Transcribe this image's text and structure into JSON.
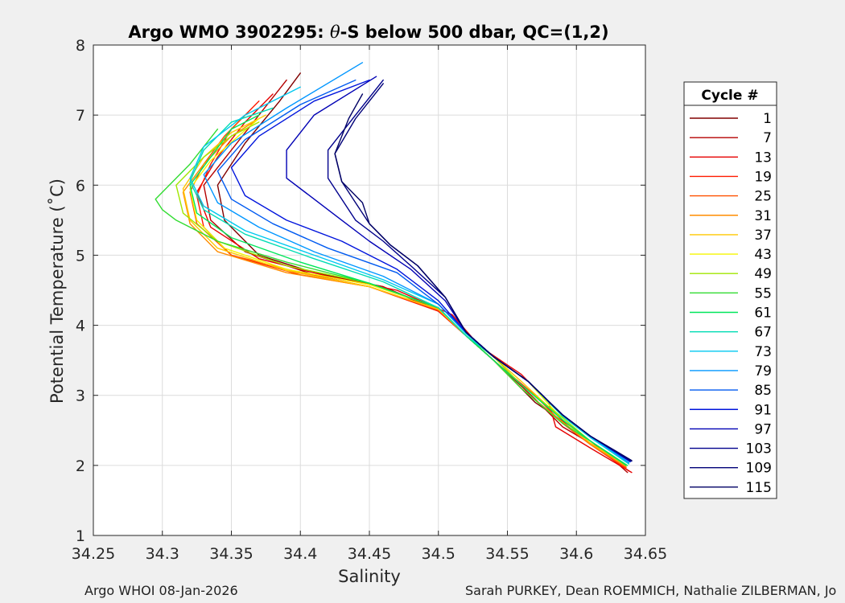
{
  "figure": {
    "footer_left": "Argo WHOI 08-Jan-2026",
    "footer_right": "Sarah PURKEY, Dean ROEMMICH, Nathalie ZILBERMAN, Jo"
  },
  "chart_data": {
    "type": "line",
    "title_prefix": "Argo WMO 3902295: ",
    "title_symbol": "θ",
    "title_suffix": "-S below 500 dbar,  QC=(1,2)",
    "xlabel": "Salinity",
    "ylabel": "Potential Temperature (˚C)",
    "xlim": [
      34.25,
      34.65
    ],
    "ylim": [
      1,
      8
    ],
    "xticks": [
      "34.25",
      "34.3",
      "34.35",
      "34.4",
      "34.45",
      "34.5",
      "34.55",
      "34.6",
      "34.65"
    ],
    "yticks": [
      "1",
      "2",
      "3",
      "4",
      "5",
      "6",
      "7",
      "8"
    ],
    "grid": true,
    "legend_title": "Cycle #",
    "legend_position": "right",
    "series": [
      {
        "name": "1",
        "color": "#800000",
        "x": [
          34.638,
          34.62,
          34.6,
          34.57,
          34.54,
          34.52,
          34.5,
          34.46,
          34.41,
          34.37,
          34.345,
          34.34,
          34.36,
          34.385,
          34.4
        ],
        "y": [
          1.92,
          2.2,
          2.5,
          2.9,
          3.5,
          3.85,
          4.2,
          4.55,
          4.75,
          5.0,
          5.5,
          6.0,
          6.6,
          7.2,
          7.6
        ]
      },
      {
        "name": "7",
        "color": "#b40000",
        "x": [
          34.637,
          34.62,
          34.59,
          34.57,
          34.54,
          34.52,
          34.5,
          34.46,
          34.41,
          34.36,
          34.335,
          34.33,
          34.35,
          34.37,
          34.39
        ],
        "y": [
          1.9,
          2.2,
          2.55,
          2.95,
          3.5,
          3.85,
          4.22,
          4.55,
          4.72,
          5.05,
          5.5,
          6.0,
          6.5,
          7.0,
          7.5
        ]
      },
      {
        "name": "13",
        "color": "#e60000",
        "x": [
          34.64,
          34.61,
          34.585,
          34.58,
          34.56,
          34.53,
          34.51,
          34.47,
          34.42,
          34.37,
          34.335,
          34.325,
          34.34,
          34.36,
          34.38
        ],
        "y": [
          1.9,
          2.25,
          2.55,
          2.9,
          3.3,
          3.7,
          4.15,
          4.5,
          4.7,
          4.95,
          5.4,
          5.9,
          6.4,
          6.9,
          7.3
        ]
      },
      {
        "name": "19",
        "color": "#ff1a00",
        "x": [
          34.636,
          34.61,
          34.59,
          34.57,
          34.54,
          34.52,
          34.5,
          34.45,
          34.4,
          34.35,
          34.33,
          34.325,
          34.335,
          34.35,
          34.37
        ],
        "y": [
          1.95,
          2.3,
          2.6,
          3.0,
          3.5,
          3.85,
          4.2,
          4.55,
          4.72,
          5.0,
          5.4,
          5.85,
          6.3,
          6.8,
          7.2
        ]
      },
      {
        "name": "25",
        "color": "#ff5000",
        "x": [
          34.636,
          34.61,
          34.59,
          34.56,
          34.54,
          34.52,
          34.5,
          34.45,
          34.4,
          34.35,
          34.325,
          34.32,
          34.33,
          34.345,
          34.36
        ],
        "y": [
          1.97,
          2.3,
          2.6,
          3.1,
          3.5,
          3.85,
          4.22,
          4.55,
          4.75,
          5.0,
          5.45,
          5.9,
          6.3,
          6.7,
          7.0
        ]
      },
      {
        "name": "31",
        "color": "#ff8c00",
        "x": [
          34.636,
          34.61,
          34.59,
          34.56,
          34.54,
          34.52,
          34.5,
          34.45,
          34.39,
          34.34,
          34.32,
          34.315,
          34.33,
          34.35,
          34.37
        ],
        "y": [
          1.98,
          2.3,
          2.62,
          3.1,
          3.5,
          3.85,
          4.22,
          4.55,
          4.75,
          5.05,
          5.45,
          5.9,
          6.3,
          6.7,
          6.95
        ]
      },
      {
        "name": "37",
        "color": "#ffc800",
        "x": [
          34.636,
          34.61,
          34.59,
          34.56,
          34.54,
          34.52,
          34.5,
          34.45,
          34.39,
          34.34,
          34.32,
          34.315,
          34.33,
          34.35,
          34.375
        ],
        "y": [
          2.0,
          2.32,
          2.65,
          3.2,
          3.55,
          3.85,
          4.23,
          4.55,
          4.78,
          5.1,
          5.5,
          5.95,
          6.4,
          6.75,
          7.0
        ]
      },
      {
        "name": "43",
        "color": "#f5f500",
        "x": [
          34.636,
          34.61,
          34.59,
          34.565,
          34.54,
          34.52,
          34.5,
          34.45,
          34.39,
          34.345,
          34.325,
          34.32,
          34.335,
          34.355,
          34.37
        ],
        "y": [
          2.0,
          2.35,
          2.65,
          3.2,
          3.55,
          3.85,
          4.25,
          4.58,
          4.8,
          5.1,
          5.5,
          5.95,
          6.35,
          6.7,
          6.95
        ]
      },
      {
        "name": "49",
        "color": "#a0e600",
        "x": [
          34.636,
          34.61,
          34.59,
          34.56,
          34.54,
          34.52,
          34.5,
          34.45,
          34.39,
          34.34,
          34.315,
          34.31,
          34.33,
          34.35,
          34.37
        ],
        "y": [
          2.0,
          2.35,
          2.68,
          3.15,
          3.55,
          3.85,
          4.25,
          4.6,
          4.85,
          5.2,
          5.6,
          6.0,
          6.4,
          6.7,
          6.9
        ]
      },
      {
        "name": "55",
        "color": "#32dc32",
        "x": [
          34.636,
          34.61,
          34.59,
          34.56,
          34.54,
          34.52,
          34.5,
          34.45,
          34.39,
          34.34,
          34.31,
          34.3,
          34.295,
          34.32,
          34.34
        ],
        "y": [
          2.0,
          2.35,
          2.6,
          3.1,
          3.5,
          3.85,
          4.25,
          4.6,
          4.9,
          5.2,
          5.5,
          5.65,
          5.8,
          6.3,
          6.8
        ]
      },
      {
        "name": "61",
        "color": "#00e65a",
        "x": [
          34.637,
          34.61,
          34.59,
          34.56,
          34.54,
          34.52,
          34.5,
          34.45,
          34.4,
          34.35,
          34.325,
          34.32,
          34.335,
          34.35,
          34.37
        ],
        "y": [
          2.0,
          2.35,
          2.65,
          3.15,
          3.5,
          3.85,
          4.25,
          4.6,
          4.9,
          5.25,
          5.6,
          6.0,
          6.4,
          6.8,
          7.0
        ]
      },
      {
        "name": "67",
        "color": "#00dcb4",
        "x": [
          34.638,
          34.61,
          34.59,
          34.565,
          34.54,
          34.52,
          34.5,
          34.46,
          34.41,
          34.36,
          34.33,
          34.32,
          34.33,
          34.35,
          34.38
        ],
        "y": [
          2.02,
          2.4,
          2.7,
          3.2,
          3.55,
          3.85,
          4.25,
          4.62,
          4.95,
          5.3,
          5.65,
          6.05,
          6.5,
          6.9,
          7.1
        ]
      },
      {
        "name": "73",
        "color": "#00c8f0",
        "x": [
          34.638,
          34.61,
          34.59,
          34.565,
          34.54,
          34.52,
          34.5,
          34.46,
          34.41,
          34.36,
          34.33,
          34.32,
          34.33,
          34.36,
          34.4
        ],
        "y": [
          2.03,
          2.4,
          2.72,
          3.2,
          3.55,
          3.88,
          4.3,
          4.65,
          5.0,
          5.35,
          5.7,
          6.1,
          6.55,
          7.0,
          7.4
        ]
      },
      {
        "name": "79",
        "color": "#0096ff",
        "x": [
          34.638,
          34.61,
          34.59,
          34.565,
          34.54,
          34.52,
          34.5,
          34.46,
          34.41,
          34.37,
          34.34,
          34.33,
          34.35,
          34.39,
          34.445
        ],
        "y": [
          2.04,
          2.42,
          2.72,
          3.2,
          3.55,
          3.9,
          4.3,
          4.7,
          5.05,
          5.4,
          5.75,
          6.15,
          6.6,
          7.1,
          7.75
        ]
      },
      {
        "name": "85",
        "color": "#005af0",
        "x": [
          34.639,
          34.61,
          34.59,
          34.565,
          34.54,
          34.52,
          34.5,
          34.47,
          34.42,
          34.38,
          34.35,
          34.34,
          34.36,
          34.4,
          34.44
        ],
        "y": [
          2.05,
          2.42,
          2.72,
          3.2,
          3.55,
          3.9,
          4.3,
          4.75,
          5.1,
          5.45,
          5.8,
          6.2,
          6.65,
          7.15,
          7.5
        ]
      },
      {
        "name": "91",
        "color": "#0014dc",
        "x": [
          34.639,
          34.61,
          34.59,
          34.565,
          34.54,
          34.52,
          34.5,
          34.47,
          34.43,
          34.39,
          34.36,
          34.35,
          34.37,
          34.41,
          34.45
        ],
        "y": [
          2.06,
          2.42,
          2.72,
          3.2,
          3.55,
          3.9,
          4.35,
          4.8,
          5.2,
          5.5,
          5.85,
          6.25,
          6.7,
          7.2,
          7.5
        ]
      },
      {
        "name": "97",
        "color": "#0000b4",
        "x": [
          34.639,
          34.61,
          34.59,
          34.565,
          34.54,
          34.52,
          34.505,
          34.48,
          34.45,
          34.43,
          34.41,
          34.39,
          34.39,
          34.41,
          34.455
        ],
        "y": [
          2.06,
          2.42,
          2.72,
          3.2,
          3.55,
          3.9,
          4.35,
          4.8,
          5.2,
          5.5,
          5.8,
          6.1,
          6.5,
          7.0,
          7.55
        ]
      },
      {
        "name": "103",
        "color": "#00008c",
        "x": [
          34.64,
          34.61,
          34.59,
          34.565,
          34.54,
          34.52,
          34.505,
          34.48,
          34.46,
          34.44,
          34.43,
          34.42,
          34.42,
          34.44,
          34.46
        ],
        "y": [
          2.06,
          2.42,
          2.72,
          3.2,
          3.55,
          3.9,
          4.4,
          4.85,
          5.2,
          5.5,
          5.8,
          6.1,
          6.5,
          7.0,
          7.5
        ]
      },
      {
        "name": "109",
        "color": "#000078",
        "x": [
          34.64,
          34.61,
          34.59,
          34.565,
          34.54,
          34.52,
          34.505,
          34.485,
          34.465,
          34.45,
          34.44,
          34.43,
          34.425,
          34.44,
          34.46
        ],
        "y": [
          2.07,
          2.42,
          2.72,
          3.2,
          3.55,
          3.9,
          4.4,
          4.85,
          5.15,
          5.45,
          5.75,
          6.05,
          6.45,
          6.95,
          7.45
        ]
      },
      {
        "name": "115",
        "color": "#000064",
        "x": [
          34.64,
          34.61,
          34.59,
          34.565,
          34.54,
          34.52,
          34.505,
          34.485,
          34.465,
          34.45,
          34.445,
          34.43,
          34.425,
          34.435,
          34.445
        ],
        "y": [
          2.07,
          2.42,
          2.72,
          3.2,
          3.55,
          3.9,
          4.4,
          4.85,
          5.15,
          5.45,
          5.75,
          6.05,
          6.45,
          6.95,
          7.3
        ]
      }
    ]
  }
}
